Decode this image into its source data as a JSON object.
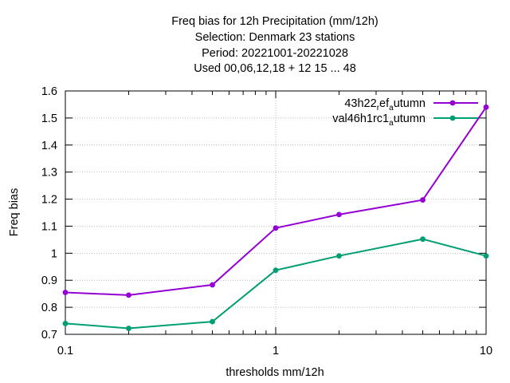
{
  "chart_data": {
    "type": "line",
    "title_lines": [
      "Freq bias  for 12h Precipitation (mm/12h)",
      "Selection: Denmark      23 stations",
      "Period: 20221001-20221028",
      "Used  00,06,12,18  + 12 15 ... 48"
    ],
    "xlabel": "thresholds mm/12h",
    "ylabel": "Freq bias",
    "x_scale": "log",
    "xlim": [
      0.1,
      10
    ],
    "ylim": [
      0.7,
      1.6
    ],
    "x_ticks": [
      0.1,
      1,
      10
    ],
    "x_tick_labels": [
      "0.1",
      "1",
      "10"
    ],
    "y_ticks": [
      0.7,
      0.8,
      0.9,
      1.0,
      1.1,
      1.2,
      1.3,
      1.4,
      1.5,
      1.6
    ],
    "y_tick_labels": [
      "0.7",
      "0.8",
      "0.9",
      "1",
      "1.1",
      "1.2",
      "1.3",
      "1.4",
      "1.5",
      "1.6"
    ],
    "grid": true,
    "legend_position": "top-right",
    "x": [
      0.1,
      0.2,
      0.5,
      1,
      2,
      5,
      10
    ],
    "series": [
      {
        "name_main": "43h22",
        "name_sub1": "r",
        "name_mid": "ef",
        "name_sub2": "a",
        "name_end": "utumn",
        "color": "#9400d3",
        "values": [
          0.855,
          0.845,
          0.883,
          1.093,
          1.143,
          1.197,
          1.54
        ]
      },
      {
        "name_main": "val46h1rc1",
        "name_sub1": "",
        "name_mid": "",
        "name_sub2": "a",
        "name_end": "utumn",
        "color": "#009e73",
        "values": [
          0.74,
          0.722,
          0.747,
          0.937,
          0.99,
          1.052,
          0.99
        ]
      }
    ]
  }
}
